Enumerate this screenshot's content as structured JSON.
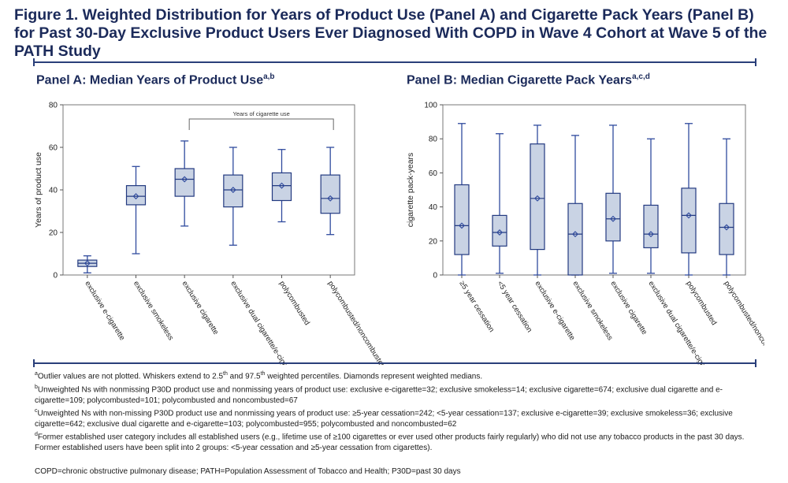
{
  "figure": {
    "title": "Figure 1. Weighted Distribution for Years of Product Use (Panel A) and Cigarette Pack Years (Panel B) for Past 30-Day Exclusive Product Users Ever Diagnosed With COPD in Wave 4 Cohort at Wave 5 of the PATH Study",
    "rule_color": "#2a3f7a",
    "title_color": "#1b2a5a"
  },
  "chart_data": [
    {
      "type": "box",
      "panel_title": "Panel A: Median Years of Product Use",
      "panel_title_sup": "a,b",
      "xlabel": "",
      "ylabel": "Years of product use",
      "ylim": [
        0,
        80
      ],
      "yticks": [
        0,
        20,
        40,
        60,
        80
      ],
      "grid": false,
      "bracket_label": "Years of cigarette use",
      "bracket_span": [
        "exclusive cigarette",
        "polycombusted/noncombusted"
      ],
      "box_fill": "#c9d3e4",
      "line_color": "#2f4a9e",
      "categories": [
        "exclusive e-cigarette",
        "exclusive smokeless",
        "exclusive cigarette",
        "exclusive dual cigarette/e-cigar",
        "polycombusted",
        "polycombusted/noncombusted"
      ],
      "boxes": [
        {
          "whisker_low": 1,
          "q1": 4,
          "median": 5.5,
          "q3": 7,
          "whisker_high": 9
        },
        {
          "whisker_low": 10,
          "q1": 33,
          "median": 37,
          "q3": 42,
          "whisker_high": 51
        },
        {
          "whisker_low": 23,
          "q1": 37,
          "median": 45,
          "q3": 50,
          "whisker_high": 63
        },
        {
          "whisker_low": 14,
          "q1": 32,
          "median": 40,
          "q3": 47,
          "whisker_high": 60
        },
        {
          "whisker_low": 25,
          "q1": 35,
          "median": 42,
          "q3": 48,
          "whisker_high": 59
        },
        {
          "whisker_low": 19,
          "q1": 29,
          "median": 36,
          "q3": 47,
          "whisker_high": 60
        }
      ]
    },
    {
      "type": "box",
      "panel_title": "Panel B: Median Cigarette Pack Years",
      "panel_title_sup": "a,c,d",
      "xlabel": "",
      "ylabel": "cigarette pack-years",
      "ylim": [
        0,
        100
      ],
      "yticks": [
        0,
        20,
        40,
        60,
        80,
        100
      ],
      "grid": false,
      "box_fill": "#c9d3e4",
      "line_color": "#2f4a9e",
      "categories": [
        "≥5 year cessation",
        "<5 year cessation",
        "exclusive e-cigarette",
        "exclusive smokeless",
        "exclusive cigarette",
        "exclusive dual cigarette/e-cigar",
        "polycombusted",
        "polycombusted/noncombusted"
      ],
      "boxes": [
        {
          "whisker_low": 0,
          "q1": 12,
          "median": 29,
          "q3": 53,
          "whisker_high": 89
        },
        {
          "whisker_low": 1,
          "q1": 17,
          "median": 25,
          "q3": 35,
          "whisker_high": 83
        },
        {
          "whisker_low": 0,
          "q1": 15,
          "median": 45,
          "q3": 77,
          "whisker_high": 88
        },
        {
          "whisker_low": 0,
          "q1": 0,
          "median": 24,
          "q3": 42,
          "whisker_high": 82
        },
        {
          "whisker_low": 1,
          "q1": 20,
          "median": 33,
          "q3": 48,
          "whisker_high": 88
        },
        {
          "whisker_low": 1,
          "q1": 16,
          "median": 24,
          "q3": 41,
          "whisker_high": 80
        },
        {
          "whisker_low": 0,
          "q1": 13,
          "median": 35,
          "q3": 51,
          "whisker_high": 89
        },
        {
          "whisker_low": 0,
          "q1": 12,
          "median": 28,
          "q3": 42,
          "whisker_high": 80
        }
      ]
    }
  ],
  "footnotes": {
    "a": {
      "sup": "a",
      "t1": "Outlier values are not plotted. Whiskers extend to 2.5",
      "s1": "th",
      "t2": " and 97.5",
      "s2": "th",
      "t3": " weighted percentiles. Diamonds represent weighted medians."
    },
    "b": {
      "sup": "b",
      "text": "Unweighted Ns with nonmissing P30D product use and nonmissing years of product use: exclusive e-cigarette=32; exclusive smokeless=14; exclusive cigarette=674; exclusive dual cigarette and e-cigarette=109; polycombusted=101; polycombusted and noncombusted=67"
    },
    "c": {
      "sup": "c",
      "text": "Unweighted Ns with non-missing P30D product use and nonmissing years of product use: ≥5-year cessation=242; <5-year cessation=137; exclusive e-cigarette=39; exclusive smokeless=36; exclusive cigarette=642; exclusive dual cigarette and e-cigarette=103; polycombusted=955; polycombusted and noncombusted=62"
    },
    "d": {
      "sup": "d",
      "text": "Former established user category includes all established users (e.g., lifetime use of ≥100 cigarettes or ever used other products fairly regularly) who did not use any tobacco products in the past 30 days. Former established users have been split into 2 groups: <5-year cessation and ≥5-year cessation from cigarettes)."
    },
    "abbreviations": "COPD=chronic obstructive pulmonary disease; PATH=Population Assessment of Tobacco and Health; P30D=past 30 days"
  }
}
